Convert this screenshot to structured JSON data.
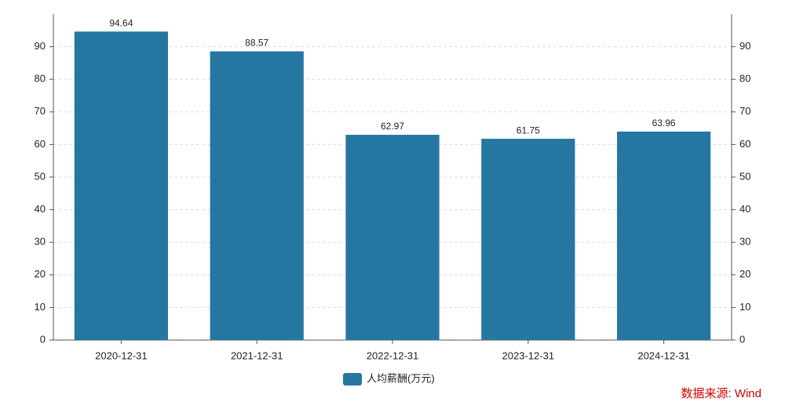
{
  "chart_data": {
    "type": "bar",
    "categories": [
      "2020-12-31",
      "2021-12-31",
      "2022-12-31",
      "2023-12-31",
      "2024-12-31"
    ],
    "series": [
      {
        "name": "人均薪酬(万元)",
        "color": "#2577a2",
        "values": [
          94.64,
          88.57,
          62.97,
          61.75,
          63.96
        ]
      }
    ],
    "ylim": [
      0,
      100
    ],
    "yticks": [
      0,
      10,
      20,
      30,
      40,
      50,
      60,
      70,
      80,
      90
    ],
    "y2lim": [
      0,
      100
    ],
    "y2ticks": [
      0,
      10,
      20,
      30,
      40,
      50,
      60,
      70,
      80,
      90
    ],
    "grid": true,
    "legend": "bottom",
    "source": "数据来源: Wind"
  }
}
